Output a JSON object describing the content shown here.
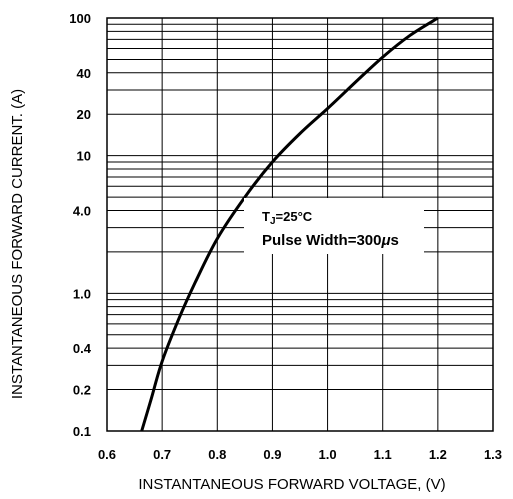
{
  "chart_data": {
    "type": "line",
    "xlabel": "INSTANTANEOUS FORWARD VOLTAGE, (V)",
    "ylabel": "INSTANTANEOUS FORWARD CURRENT. (A)",
    "xlim": [
      0.6,
      1.3
    ],
    "ylim": [
      0.1,
      100
    ],
    "yscale": "log",
    "grid": true,
    "x_ticks": [
      "0.6",
      "0.7",
      "0.8",
      "0.9",
      "1.0",
      "1.1",
      "1.2",
      "1.3"
    ],
    "y_ticks": [
      "0.1",
      "0.2",
      "0.4",
      "1.0",
      "4.0",
      "10",
      "20",
      "40",
      "100"
    ],
    "annotation": {
      "tj_prefix": "T",
      "tj_sub": "J",
      "tj_value": "=25°C",
      "pulse": "Pulse Width=300",
      "pulse_mu": "μ",
      "pulse_unit": "s"
    },
    "series": [
      {
        "x": [
          0.663,
          0.68,
          0.7,
          0.73,
          0.76,
          0.8,
          0.85,
          0.9,
          0.95,
          1.0,
          1.05,
          1.1,
          1.15,
          1.2
        ],
        "y": [
          0.1,
          0.17,
          0.32,
          0.65,
          1.2,
          2.5,
          5.0,
          9.0,
          14.5,
          22,
          34,
          52,
          75,
          100
        ]
      }
    ],
    "line_color": "#000000",
    "grid_color": "#000000"
  }
}
